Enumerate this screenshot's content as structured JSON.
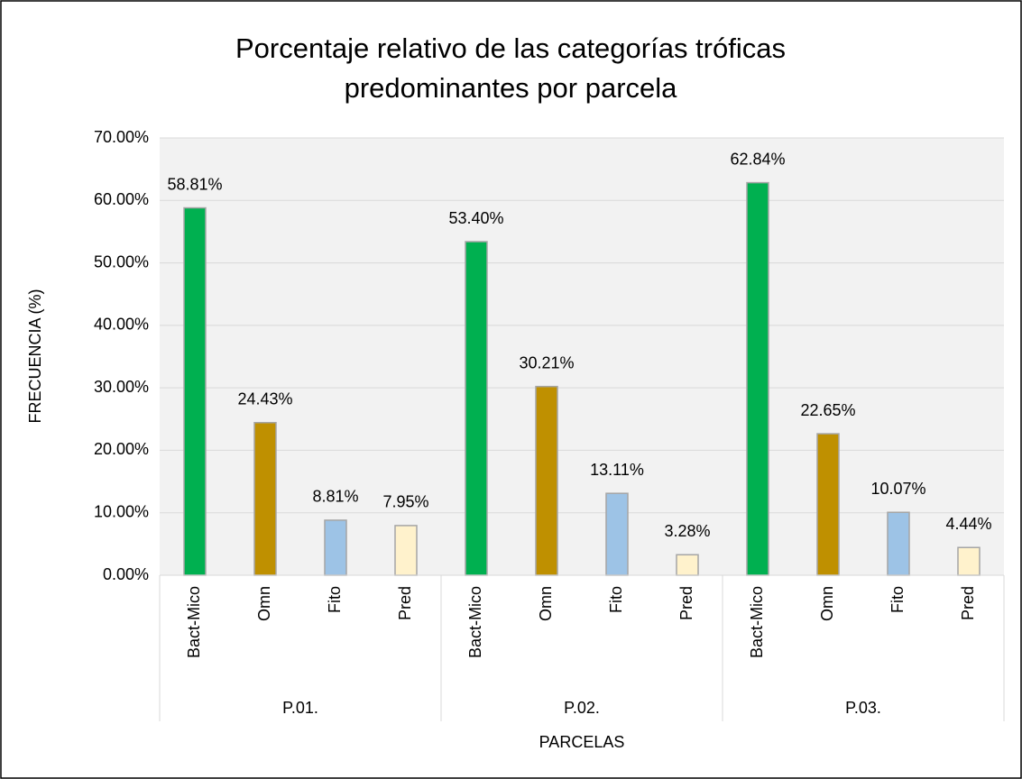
{
  "chart_data": {
    "type": "bar",
    "title": [
      "Porcentaje relativo de las categorías tróficas",
      "predominantes por parcela"
    ],
    "y_label": "FRECUENCIA (%)",
    "x_label": "PARCELAS",
    "groups": [
      "P.01.",
      "P.02.",
      "P.03."
    ],
    "categories": [
      "Bact-Mico",
      "Omn",
      "Fito",
      "Pred",
      "Bact-Mico",
      "Omn",
      "Fito",
      "Pred",
      "Bact-Mico",
      "Omn",
      "Fito",
      "Pred"
    ],
    "values": [
      58.81,
      24.43,
      8.81,
      7.95,
      53.4,
      30.21,
      13.11,
      3.28,
      62.84,
      22.65,
      10.07,
      4.44
    ],
    "value_labels": [
      "58.81%",
      "24.43%",
      "8.81%",
      "7.95%",
      "53.40%",
      "30.21%",
      "13.11%",
      "3.28%",
      "62.84%",
      "22.65%",
      "10.07%",
      "4.44%"
    ],
    "colors": [
      "#00b050",
      "#bf9000",
      "#9dc3e6",
      "#fff2cc",
      "#00b050",
      "#bf9000",
      "#9dc3e6",
      "#fff2cc",
      "#00b050",
      "#bf9000",
      "#9dc3e6",
      "#fff2cc"
    ],
    "ylim": [
      0,
      70
    ],
    "yticks": [
      {
        "value": 0,
        "label": "0.00%"
      },
      {
        "value": 10,
        "label": "10.00%"
      },
      {
        "value": 20,
        "label": "20.00%"
      },
      {
        "value": 30,
        "label": "30.00%"
      },
      {
        "value": 40,
        "label": "40.00%"
      },
      {
        "value": 50,
        "label": "50.00%"
      },
      {
        "value": 60,
        "label": "60.00%"
      },
      {
        "value": 70,
        "label": "70.00%"
      }
    ],
    "grid": true
  }
}
